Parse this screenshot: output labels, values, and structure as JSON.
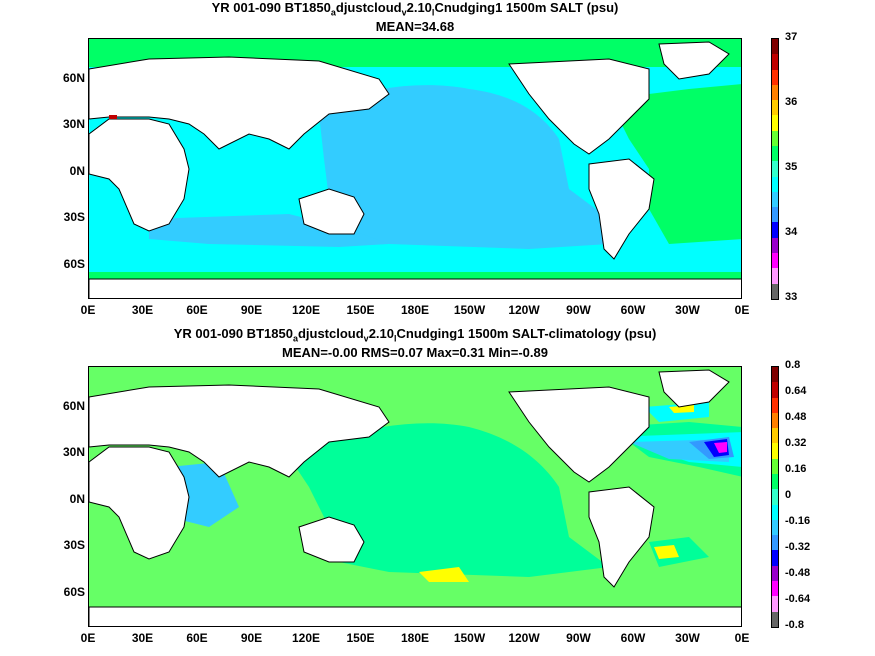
{
  "panel1": {
    "title_a": "YR 001-090 BT1850",
    "title_sub1": "a",
    "title_b": "djustcloud",
    "title_sub2": "v",
    "title_c": "2.10",
    "title_sub3": "l",
    "title_d": "Cnudging1 1500m SALT (psu)",
    "stats": "MEAN=34.68",
    "colorbar_labels": [
      "37",
      "36",
      "35",
      "34",
      "33"
    ],
    "colors": [
      "#7f0000",
      "#c00000",
      "#ff3000",
      "#ff8000",
      "#ffcc00",
      "#ffff00",
      "#66ff33",
      "#00ff66",
      "#33ffcc",
      "#00ffff",
      "#33ccff",
      "#3399ff",
      "#0000ff",
      "#9900cc",
      "#ff00ff",
      "#ff99ff",
      "#666666"
    ]
  },
  "panel2": {
    "title_a": "YR 001-090 BT1850",
    "title_sub1": "a",
    "title_b": "djustcloud",
    "title_sub2": "v",
    "title_c": "2.10",
    "title_sub3": "l",
    "title_d": "Cnudging1 1500m SALT-climatology (psu)",
    "stats": "MEAN=-0.00   RMS=0.07   Max=0.31   Min=-0.89",
    "colorbar_labels": [
      "0.8",
      "0.64",
      "0.48",
      "0.32",
      "0.16",
      "0",
      "-0.16",
      "-0.32",
      "-0.48",
      "-0.64",
      "-0.8"
    ],
    "colors": [
      "#7f0000",
      "#c00000",
      "#ff3000",
      "#ff8000",
      "#ffcc00",
      "#ffff00",
      "#66ff33",
      "#00ff66",
      "#33ffcc",
      "#00ffff",
      "#33ccff",
      "#3399ff",
      "#0000ff",
      "#9900cc",
      "#ff00ff",
      "#ff99ff",
      "#666666"
    ]
  },
  "axes": {
    "lat_labels": [
      "60N",
      "30N",
      "0N",
      "30S",
      "60S"
    ],
    "lon_labels": [
      "0E",
      "30E",
      "60E",
      "90E",
      "120E",
      "150E",
      "180E",
      "150W",
      "120W",
      "90W",
      "60W",
      "30W",
      "0E"
    ]
  },
  "map_colors": {
    "panel1_ocean": "#00ffff",
    "panel1_pacific": "#33ccff",
    "panel1_atlantic": "#00ff66",
    "panel1_arctic": "#00ff66",
    "panel2_ocean": "#66ff66",
    "panel2_deep": "#00ff99",
    "land": "#ffffff"
  }
}
